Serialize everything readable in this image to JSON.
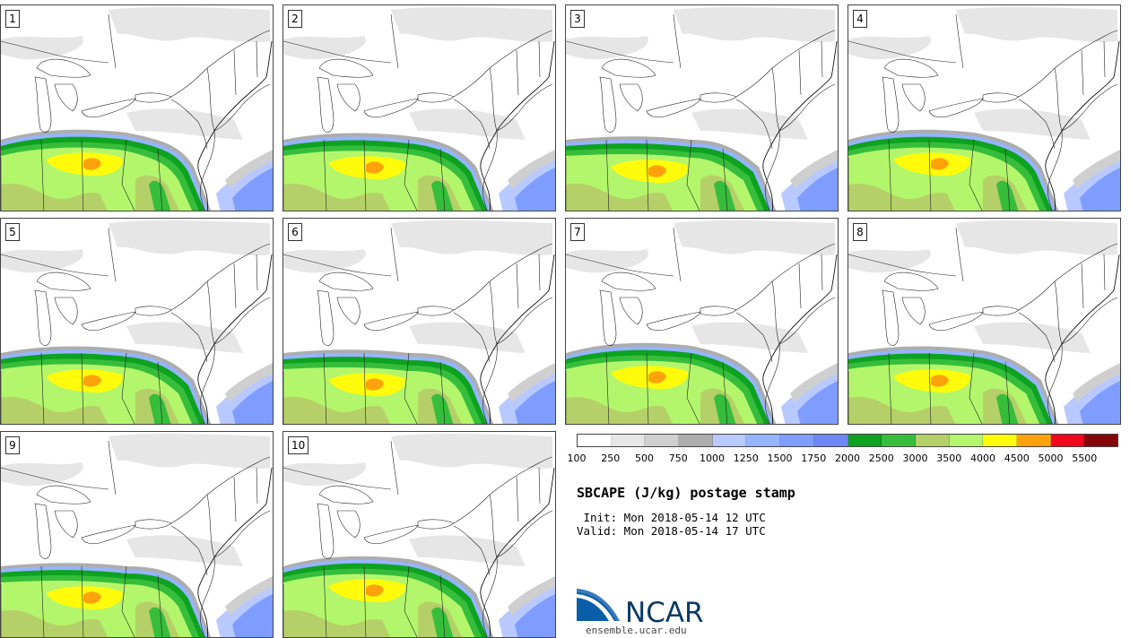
{
  "members": [
    "1",
    "2",
    "3",
    "4",
    "5",
    "6",
    "7",
    "8",
    "9",
    "10"
  ],
  "colorbar": {
    "colors": [
      "#ffffff",
      "#e6e6e6",
      "#cfcfcf",
      "#adadad",
      "#b7c9ff",
      "#96b4ff",
      "#7f9dff",
      "#6f86f6",
      "#0da21f",
      "#36bd3b",
      "#b6d069",
      "#b3f66b",
      "#fffb0b",
      "#fea20b",
      "#f0071b",
      "#850709"
    ],
    "tick_labels": [
      "100",
      "250",
      "500",
      "750",
      "1000",
      "1250",
      "1500",
      "1750",
      "2000",
      "2500",
      "3000",
      "3500",
      "4000",
      "4500",
      "5000",
      "5500"
    ]
  },
  "title": "SBCAPE (J/kg) postage stamp",
  "init_line": " Init: Mon 2018-05-14 12 UTC",
  "valid_line": "Valid: Mon 2018-05-14 17 UTC",
  "logo": {
    "text": "NCAR",
    "url": "ensemble.ucar.edu"
  }
}
